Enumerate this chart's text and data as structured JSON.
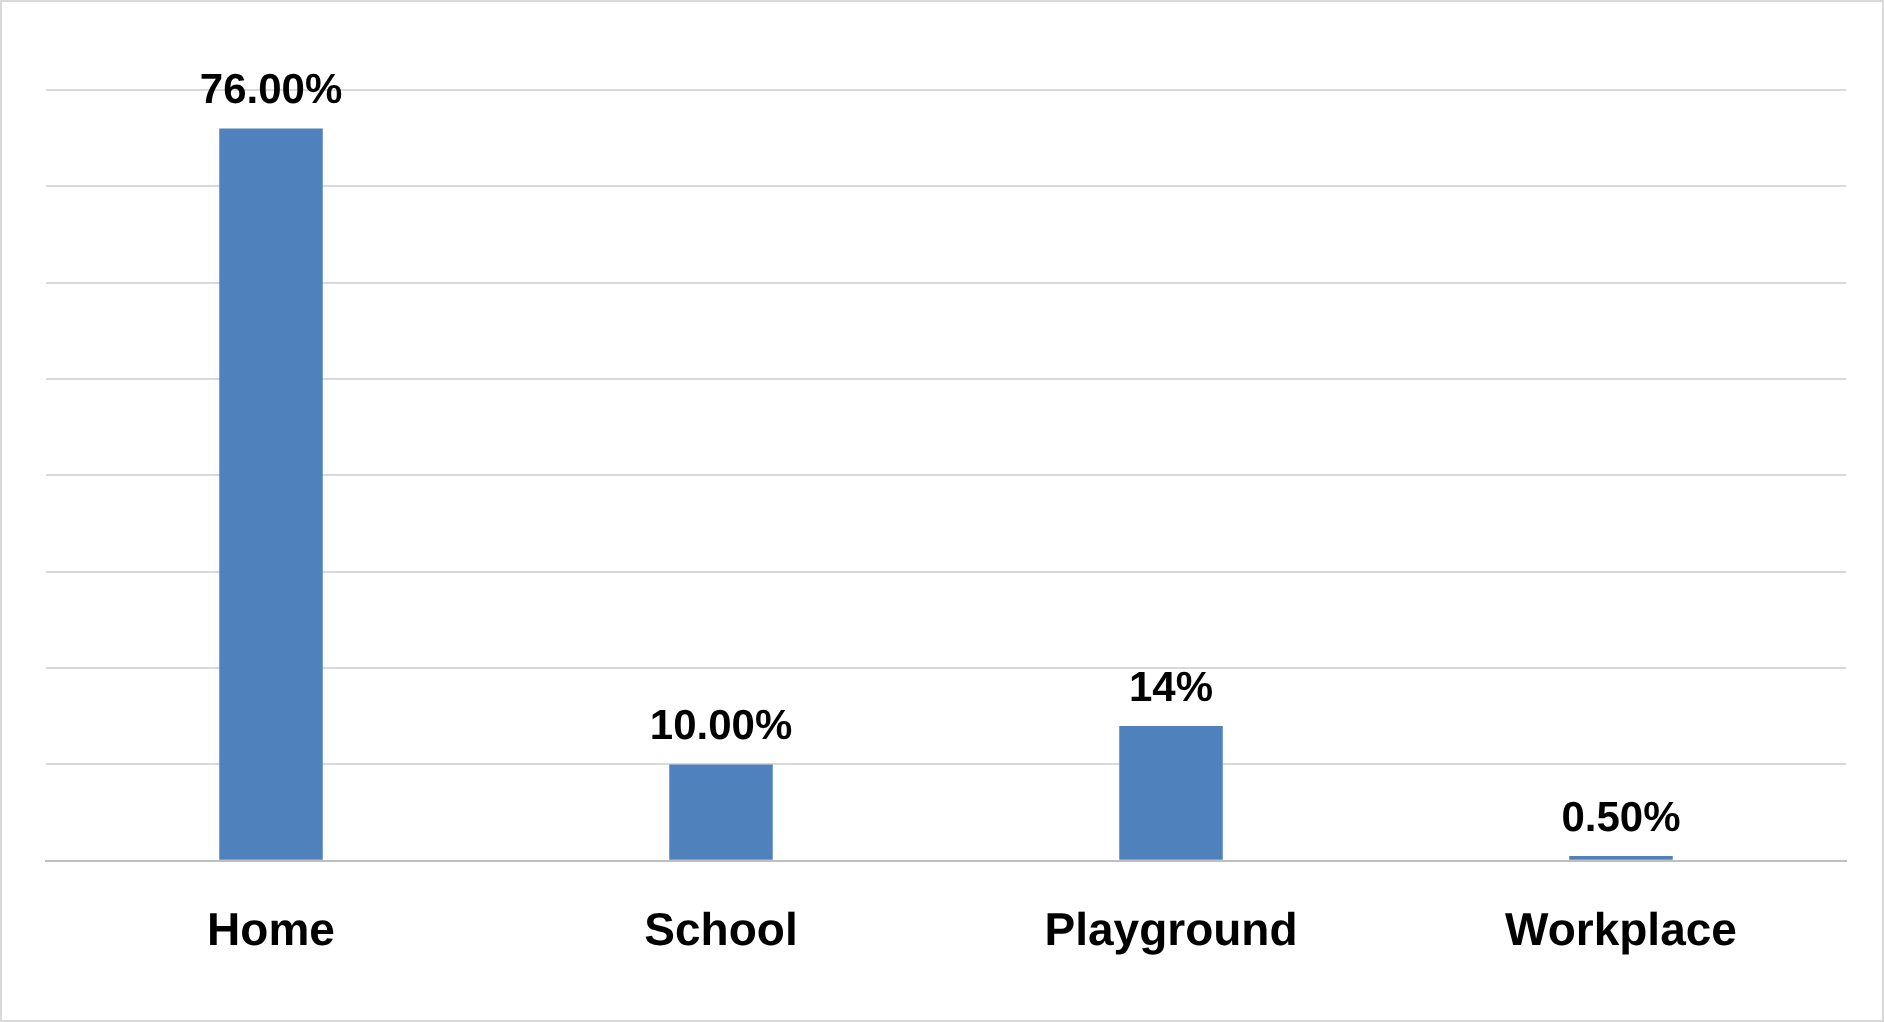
{
  "chart_data": {
    "type": "bar",
    "categories": [
      "Home",
      "School",
      "Playground",
      "Workplace"
    ],
    "values": [
      76,
      10,
      14,
      0.5
    ],
    "value_labels": [
      "76.00%",
      "10.00%",
      "14%",
      "0.50%"
    ],
    "color": "#4f81bd",
    "ylim": [
      0,
      80
    ],
    "yticks": [
      {
        "value": 0,
        "label": null
      },
      {
        "value": 10,
        "label": null
      },
      {
        "value": 20,
        "label": null
      },
      {
        "value": 30,
        "label": null
      },
      {
        "value": 40,
        "label": null
      },
      {
        "value": 50,
        "label": null
      },
      {
        "value": 60,
        "label": null
      },
      {
        "value": 70,
        "label": null
      },
      {
        "value": 80,
        "label": null
      }
    ],
    "grid": "y",
    "tick_labels": "x",
    "legend": false
  }
}
